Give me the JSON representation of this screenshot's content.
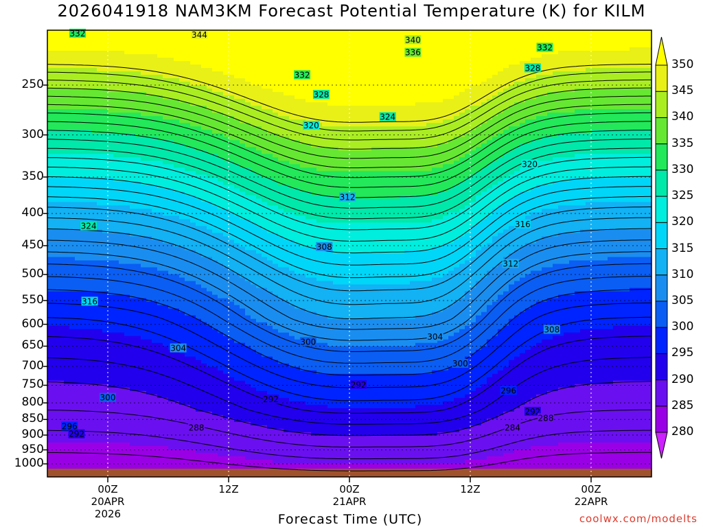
{
  "title": "2026041918 NAM3KM Forecast Potential Temperature (K) for KILM",
  "xlabel": "Forecast Time (UTC)",
  "credit": "coolwx.com/modelts",
  "chart_data": {
    "type": "heatmap",
    "x_ticks": [
      {
        "hours": 6,
        "label": [
          "00Z",
          "20APR",
          "2026"
        ]
      },
      {
        "hours": 18,
        "label": [
          "12Z"
        ]
      },
      {
        "hours": 30,
        "label": [
          "00Z",
          "21APR"
        ]
      },
      {
        "hours": 42,
        "label": [
          "12Z"
        ]
      },
      {
        "hours": 54,
        "label": [
          "00Z",
          "22APR"
        ]
      }
    ],
    "xlim_hours": [
      0,
      60
    ],
    "y_ticks": [
      "250",
      "300",
      "350",
      "400",
      "450",
      "500",
      "550",
      "600",
      "650",
      "700",
      "750",
      "800",
      "850",
      "900",
      "950",
      "1000"
    ],
    "ylim_hPa": [
      200,
      1025
    ],
    "log_scale_y": true,
    "colorbar": {
      "levels": [
        280,
        285,
        290,
        295,
        300,
        305,
        310,
        315,
        320,
        325,
        330,
        335,
        340,
        345,
        350
      ],
      "labels": [
        "280",
        "285",
        "290",
        "295",
        "300",
        "305",
        "310",
        "315",
        "320",
        "325",
        "330",
        "335",
        "340",
        "345",
        "350"
      ],
      "colors": [
        "#cc22ff",
        "#9a00e6",
        "#6a10f0",
        "#2200ee",
        "#0024ff",
        "#0a5ef4",
        "#1a8ef0",
        "#12b2f4",
        "#00d6f8",
        "#00eedd",
        "#00e8aa",
        "#22e85a",
        "#66e832",
        "#aaee22",
        "#e8f018",
        "#ffff00"
      ]
    },
    "contour_labels": [
      {
        "text": "332",
        "t": 3.0,
        "p": 207
      },
      {
        "text": "344",
        "t": 15.1,
        "p": 208
      },
      {
        "text": "340",
        "t": 36.3,
        "p": 212
      },
      {
        "text": "336",
        "t": 36.3,
        "p": 222
      },
      {
        "text": "332",
        "t": 49.4,
        "p": 218
      },
      {
        "text": "328",
        "t": 48.2,
        "p": 235
      },
      {
        "text": "332",
        "t": 25.3,
        "p": 241
      },
      {
        "text": "328",
        "t": 27.2,
        "p": 259
      },
      {
        "text": "324",
        "t": 33.8,
        "p": 281
      },
      {
        "text": "320",
        "t": 26.2,
        "p": 290
      },
      {
        "text": "320",
        "t": 47.9,
        "p": 334
      },
      {
        "text": "312",
        "t": 29.8,
        "p": 377
      },
      {
        "text": "316",
        "t": 47.2,
        "p": 416
      },
      {
        "text": "324",
        "t": 4.1,
        "p": 419
      },
      {
        "text": "308",
        "t": 27.5,
        "p": 452
      },
      {
        "text": "312",
        "t": 46.0,
        "p": 481
      },
      {
        "text": "316",
        "t": 4.2,
        "p": 552
      },
      {
        "text": "308",
        "t": 50.1,
        "p": 612
      },
      {
        "text": "304",
        "t": 38.5,
        "p": 628
      },
      {
        "text": "300",
        "t": 25.9,
        "p": 640
      },
      {
        "text": "304",
        "t": 13.0,
        "p": 655
      },
      {
        "text": "300",
        "t": 41.0,
        "p": 693
      },
      {
        "text": "292",
        "t": 30.9,
        "p": 749
      },
      {
        "text": "296",
        "t": 45.8,
        "p": 765
      },
      {
        "text": "300",
        "t": 6.0,
        "p": 785
      },
      {
        "text": "292",
        "t": 22.2,
        "p": 790
      },
      {
        "text": "292",
        "t": 48.2,
        "p": 826
      },
      {
        "text": "288",
        "t": 49.5,
        "p": 846
      },
      {
        "text": "296",
        "t": 2.2,
        "p": 872
      },
      {
        "text": "288",
        "t": 14.8,
        "p": 877
      },
      {
        "text": "284",
        "t": 46.2,
        "p": 876
      },
      {
        "text": "292",
        "t": 2.9,
        "p": 897
      }
    ]
  }
}
